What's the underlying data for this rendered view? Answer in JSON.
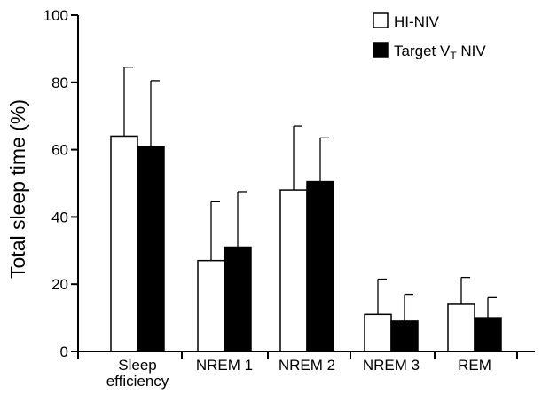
{
  "chart_data": {
    "type": "bar",
    "ylabel": "Total sleep time (%)",
    "ylim": [
      0,
      100
    ],
    "yticks": [
      "0",
      "20",
      "40",
      "60",
      "80",
      "100"
    ],
    "grid": false,
    "legend_position": "top-right",
    "categories": [
      {
        "line1": "Sleep",
        "line2": "efficiency"
      },
      {
        "line1": "NREM 1",
        "line2": ""
      },
      {
        "line1": "NREM 2",
        "line2": ""
      },
      {
        "line1": "NREM 3",
        "line2": ""
      },
      {
        "line1": "REM",
        "line2": ""
      }
    ],
    "series": [
      {
        "name": "HI-NIV",
        "fill": "#ffffff",
        "values": [
          64,
          27,
          48,
          11,
          14
        ],
        "error_upper": [
          84.5,
          44.5,
          67,
          21.5,
          22
        ]
      },
      {
        "name_main": "Target V",
        "name_sub": "T",
        "name_tail": " NIV",
        "fill": "#000000",
        "values": [
          61,
          31,
          50.5,
          9,
          10
        ],
        "error_upper": [
          80.5,
          47.5,
          63.5,
          17,
          16
        ]
      }
    ]
  }
}
